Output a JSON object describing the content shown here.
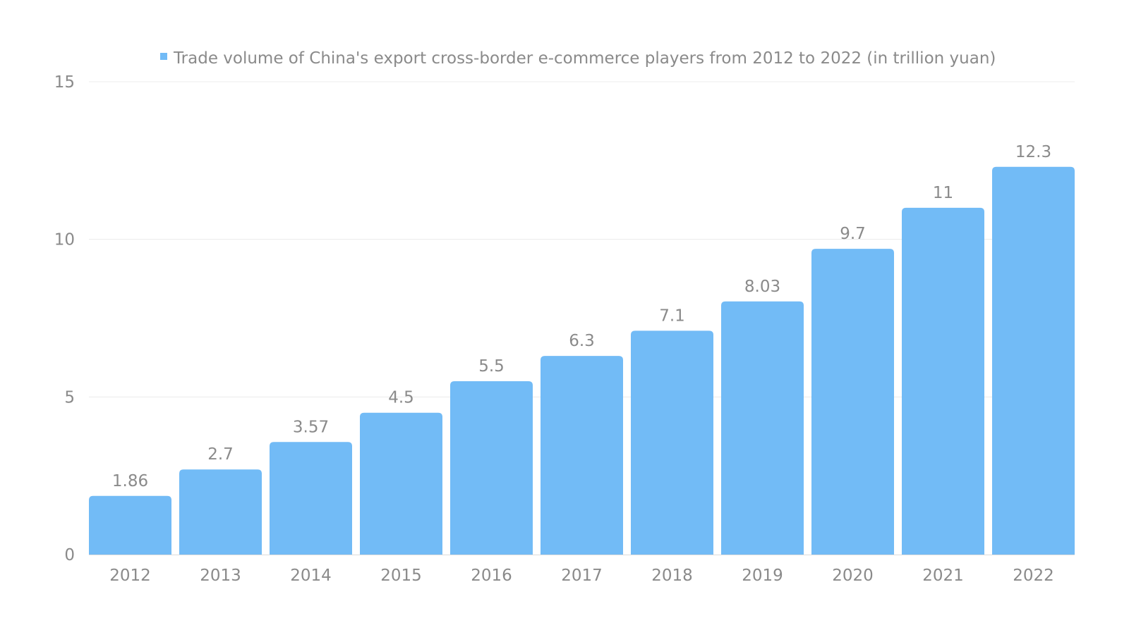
{
  "chart_data": {
    "type": "bar",
    "categories": [
      "2012",
      "2013",
      "2014",
      "2015",
      "2016",
      "2017",
      "2018",
      "2019",
      "2020",
      "2021",
      "2022"
    ],
    "series": [
      {
        "name": "Trade volume of China's export cross-border e-commerce players from 2012 to 2022 (in trillion yuan)",
        "values": [
          1.86,
          2.7,
          3.57,
          4.5,
          5.5,
          6.3,
          7.1,
          8.03,
          9.7,
          11,
          12.3
        ],
        "labels": [
          "1.86",
          "2.7",
          "3.57",
          "4.5",
          "5.5",
          "6.3",
          "7.1",
          "8.03",
          "9.7",
          "11",
          "12.3"
        ]
      }
    ],
    "yticks": [
      "0",
      "5",
      "10",
      "15"
    ],
    "ylim": [
      0,
      15
    ],
    "grid": true,
    "legend_position": "top",
    "colors": {
      "bar": "#72BBF6",
      "text": "#8a8a8a",
      "grid": "#ececec"
    }
  }
}
